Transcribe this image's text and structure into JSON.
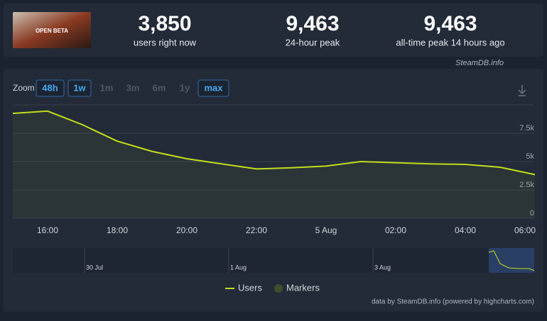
{
  "header": {
    "thumbnail_text": "OPEN BETA",
    "stats": [
      {
        "value": "3,850",
        "label": "users right now"
      },
      {
        "value": "9,463",
        "label": "24-hour peak"
      },
      {
        "value": "9,463",
        "label": "all-time peak 14 hours ago"
      }
    ],
    "source": "SteamDB.info"
  },
  "zoom": {
    "label": "Zoom",
    "buttons": [
      {
        "text": "48h",
        "active": true
      },
      {
        "text": "1w",
        "active": true
      },
      {
        "text": "1m",
        "active": false
      },
      {
        "text": "3m",
        "active": false
      },
      {
        "text": "6m",
        "active": false
      },
      {
        "text": "1y",
        "active": false
      },
      {
        "text": "max",
        "active": true
      }
    ]
  },
  "chart_data": {
    "type": "line",
    "categories": [
      null,
      "16:00",
      null,
      "18:00",
      null,
      "20:00",
      null,
      "22:00",
      null,
      "5 Aug",
      null,
      "02:00",
      null,
      "04:00",
      null,
      "06:00"
    ],
    "series": [
      {
        "name": "Users",
        "color": "#c3de1c",
        "values": [
          9250,
          9450,
          8250,
          6800,
          5900,
          5250,
          4800,
          4350,
          4450,
          4600,
          5000,
          4900,
          4800,
          4750,
          4500,
          3850
        ]
      }
    ],
    "markers_label": "Markers",
    "markers_color": "#3f4d2c",
    "ylim": [
      0,
      10000
    ],
    "yticks": [
      0,
      {
        "value": 2500,
        "label": "2.5k"
      },
      {
        "value": 5000,
        "label": "5k"
      },
      {
        "value": 7500,
        "label": "7.5k"
      }
    ],
    "grid": true,
    "navigator_labels": [
      "30 Jul",
      "1 Aug",
      "3 Aug"
    ],
    "credit": "data by SteamDB.info (powered by highcharts.com)"
  }
}
